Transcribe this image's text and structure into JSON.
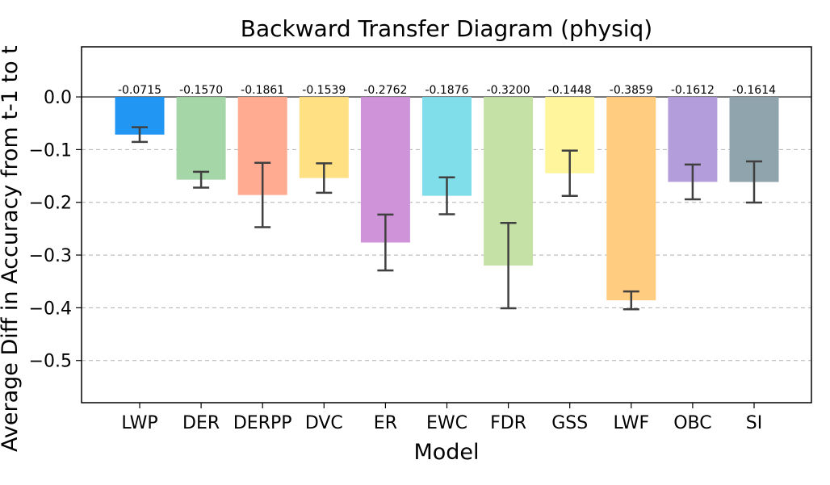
{
  "chart_data": {
    "type": "bar",
    "title": "Backward Transfer Diagram (physiq)",
    "xlabel": "Model",
    "ylabel": "Average Diff in Accuracy from t-1 to t",
    "categories": [
      "LWP",
      "DER",
      "DERPP",
      "DVC",
      "ER",
      "EWC",
      "FDR",
      "GSS",
      "LWF",
      "OBC",
      "SI"
    ],
    "values": [
      -0.0715,
      -0.157,
      -0.1861,
      -0.1539,
      -0.2762,
      -0.1876,
      -0.32,
      -0.1448,
      -0.3859,
      -0.1612,
      -0.1614
    ],
    "value_labels": [
      "-0.0715",
      "-0.1570",
      "-0.1861",
      "-0.1539",
      "-0.2762",
      "-0.1876",
      "-0.3200",
      "-0.1448",
      "-0.3859",
      "-0.1612",
      "-0.1614"
    ],
    "errors": [
      0.014,
      0.015,
      0.061,
      0.028,
      0.053,
      0.035,
      0.081,
      0.043,
      0.017,
      0.033,
      0.039
    ],
    "colors": [
      "#2196f3",
      "#a5d6a7",
      "#ffab91",
      "#ffe082",
      "#ce93d8",
      "#80deea",
      "#c5e1a5",
      "#fff59d",
      "#ffcc80",
      "#b39ddb",
      "#90a4ae"
    ],
    "ylim": [
      -0.58,
      0.095
    ],
    "yticks": [
      0.0,
      -0.1,
      -0.2,
      -0.3,
      -0.4,
      -0.5
    ],
    "ytick_labels": [
      "0.0",
      "−0.1",
      "−0.2",
      "−0.3",
      "−0.4",
      "−0.5"
    ],
    "grid": "horizontal-dashed",
    "error_color": "#404040"
  }
}
